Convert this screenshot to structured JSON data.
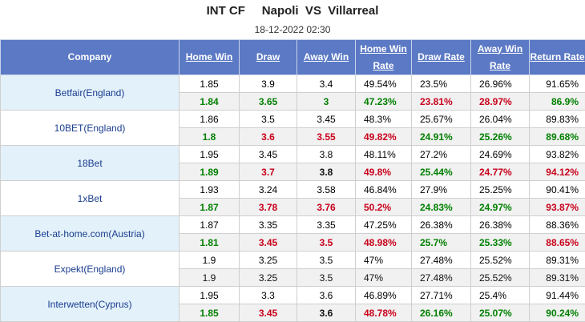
{
  "header": {
    "home_team": "INT CF",
    "away_team_label": "Napoli  VS  Villarreal",
    "datetime": "18-12-2022 02:30"
  },
  "columns": {
    "company": "Company",
    "home_win": "Home Win",
    "draw": "Draw",
    "away_win": "Away Win",
    "home_win_rate_1": "Home Win",
    "home_win_rate_2": "Rate",
    "draw_rate": "Draw Rate",
    "away_win_rate_1": "Away Win",
    "away_win_rate_2": "Rate",
    "return_rate": "Return Rate"
  },
  "colors": {
    "header_bg": "#5b79c4",
    "up": "#008000",
    "down": "#c8001a",
    "company_blue_bg": "#e3f1fa",
    "live_row_bg": "#f1f1f1"
  },
  "rows": [
    {
      "company": "Betfair(England)",
      "band": "blue",
      "initial": [
        "1.85",
        "3.9",
        "3.4",
        "49.54%",
        "23.5%",
        "26.96%",
        "91.65%"
      ],
      "live": [
        "1.84",
        "3.65",
        "3",
        "47.23%",
        "23.81%",
        "28.97%",
        "86.9%"
      ],
      "live_colors": [
        "green",
        "green",
        "green",
        "green",
        "red",
        "red",
        "green"
      ]
    },
    {
      "company": "10BET(England)",
      "band": "white",
      "initial": [
        "1.86",
        "3.5",
        "3.45",
        "48.3%",
        "25.67%",
        "26.04%",
        "89.83%"
      ],
      "live": [
        "1.8",
        "3.6",
        "3.55",
        "49.82%",
        "24.91%",
        "25.26%",
        "89.68%"
      ],
      "live_colors": [
        "green",
        "red",
        "red",
        "red",
        "green",
        "green",
        "green"
      ]
    },
    {
      "company": "18Bet",
      "band": "blue",
      "initial": [
        "1.95",
        "3.45",
        "3.8",
        "48.11%",
        "27.2%",
        "24.69%",
        "93.82%"
      ],
      "live": [
        "1.89",
        "3.7",
        "3.8",
        "49.8%",
        "25.44%",
        "24.77%",
        "94.12%"
      ],
      "live_colors": [
        "green",
        "red",
        "black",
        "red",
        "green",
        "red",
        "red"
      ]
    },
    {
      "company": "1xBet",
      "band": "white",
      "initial": [
        "1.93",
        "3.24",
        "3.58",
        "46.84%",
        "27.9%",
        "25.25%",
        "90.41%"
      ],
      "live": [
        "1.87",
        "3.78",
        "3.76",
        "50.2%",
        "24.83%",
        "24.97%",
        "93.87%"
      ],
      "live_colors": [
        "green",
        "red",
        "red",
        "red",
        "green",
        "green",
        "red"
      ]
    },
    {
      "company": "Bet-at-home.com(Austria)",
      "band": "blue",
      "initial": [
        "1.87",
        "3.35",
        "3.35",
        "47.25%",
        "26.38%",
        "26.38%",
        "88.36%"
      ],
      "live": [
        "1.81",
        "3.45",
        "3.5",
        "48.98%",
        "25.7%",
        "25.33%",
        "88.65%"
      ],
      "live_colors": [
        "green",
        "red",
        "red",
        "red",
        "green",
        "green",
        "red"
      ]
    },
    {
      "company": "Expekt(England)",
      "band": "white",
      "live_plain": true,
      "initial": [
        "1.9",
        "3.25",
        "3.5",
        "47%",
        "27.48%",
        "25.52%",
        "89.31%"
      ],
      "live": [
        "1.9",
        "3.25",
        "3.5",
        "47%",
        "27.48%",
        "25.52%",
        "89.31%"
      ],
      "live_colors": [
        "black",
        "black",
        "black",
        "black",
        "black",
        "black",
        "black"
      ]
    },
    {
      "company": "Interwetten(Cyprus)",
      "band": "blue",
      "initial": [
        "1.95",
        "3.3",
        "3.6",
        "46.89%",
        "27.71%",
        "25.4%",
        "91.44%"
      ],
      "live": [
        "1.85",
        "3.45",
        "3.6",
        "48.78%",
        "26.16%",
        "25.07%",
        "90.24%"
      ],
      "live_colors": [
        "green",
        "red",
        "black",
        "red",
        "green",
        "green",
        "green"
      ]
    }
  ]
}
